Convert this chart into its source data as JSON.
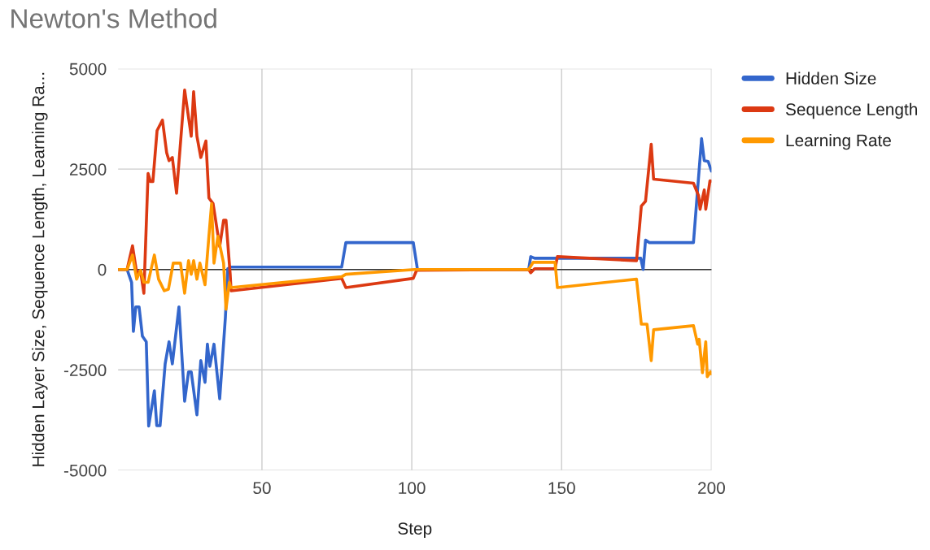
{
  "chart_data": {
    "type": "line",
    "title": "Newton's Method",
    "xlabel": "Step",
    "ylabel": "Hidden Layer Size, Sequence Length, Learning Ra...",
    "xlim": [
      2,
      200
    ],
    "xticks": [
      50,
      100,
      150,
      200
    ],
    "ylim": [
      -5000,
      5000
    ],
    "yticks": [
      -5000,
      -2500,
      0,
      2500,
      5000
    ],
    "grid": true,
    "legend": "top right",
    "line_style": "solid",
    "ref_lines": [
      {
        "axis": "y",
        "value": 0,
        "color": "#333333"
      }
    ],
    "series": [
      {
        "name": "Hidden Size",
        "color": "#3366cc",
        "x": [
          2,
          5,
          6.5,
          7.1,
          7.9,
          9,
          10.1,
          11.4,
          12.2,
          14.1,
          14.9,
          16,
          17.7,
          19,
          20.1,
          22.3,
          24.2,
          25.5,
          26.4,
          28.3,
          29.6,
          31,
          31.8,
          32.6,
          34,
          35.9,
          37.8,
          38.6,
          39.5,
          76.6,
          78,
          100.5,
          101.9,
          139,
          139.7,
          141,
          176.4,
          177.2,
          178,
          179.3,
          194,
          196.7,
          197.6,
          198.9,
          200
        ],
        "values": [
          0,
          0,
          -320,
          -1540,
          -930,
          -930,
          -1660,
          -1800,
          -3900,
          -3020,
          -3890,
          -3890,
          -2350,
          -1800,
          -2350,
          -930,
          -3280,
          -2550,
          -2550,
          -3620,
          -2270,
          -2810,
          -1860,
          -2410,
          -1860,
          -3220,
          -1190,
          20,
          60,
          60,
          670,
          670,
          0,
          0,
          320,
          280,
          280,
          0,
          730,
          670,
          670,
          3260,
          2710,
          2690,
          2450
        ]
      },
      {
        "name": "Sequence Length",
        "color": "#dc3912",
        "x": [
          2,
          5,
          6.8,
          8.2,
          9.5,
          10.6,
          12,
          12.8,
          13.6,
          15,
          16.8,
          18.2,
          19,
          20.1,
          21.5,
          24.2,
          26.4,
          27.2,
          28.3,
          29.6,
          31.3,
          32.3,
          33.7,
          35.9,
          37.2,
          38,
          39.4,
          39.7,
          76.6,
          78,
          100.5,
          101.6,
          139,
          139.7,
          141,
          147.8,
          148.6,
          175,
          176.6,
          178,
          179.9,
          180.7,
          194,
          195.7,
          196.2,
          197.6,
          198.1,
          199.5,
          200
        ],
        "values": [
          0,
          0,
          590,
          -80,
          -40,
          -590,
          2390,
          2190,
          2190,
          3460,
          3720,
          2910,
          2710,
          2790,
          1900,
          4470,
          3320,
          4430,
          3320,
          2790,
          3200,
          1780,
          1640,
          570,
          1230,
          1230,
          -120,
          -530,
          -220,
          -450,
          -220,
          -20,
          0,
          -80,
          20,
          20,
          320,
          220,
          1580,
          1700,
          3120,
          2250,
          2150,
          1840,
          1500,
          1980,
          1500,
          2210,
          2200
        ]
      },
      {
        "name": "Learning Rate",
        "color": "#ff9900",
        "x": [
          2,
          5,
          6.8,
          8.2,
          9.5,
          10.6,
          12,
          14.1,
          15.5,
          17.4,
          18.8,
          20.4,
          22.8,
          24.2,
          25.5,
          26.4,
          27.2,
          28.3,
          29.3,
          31,
          32.3,
          33.2,
          34,
          35.3,
          37.2,
          38,
          39.1,
          39.6,
          76.6,
          78,
          101,
          139,
          140.5,
          147.8,
          148.6,
          175,
          176.6,
          178.5,
          179.9,
          180.7,
          194,
          195.4,
          195.9,
          197,
          198.1,
          198.6,
          199.7,
          200
        ],
        "values": [
          0,
          0,
          360,
          -240,
          -20,
          -320,
          -320,
          360,
          -240,
          -530,
          -490,
          160,
          160,
          -590,
          220,
          -120,
          220,
          -240,
          160,
          -380,
          830,
          1640,
          160,
          830,
          160,
          -990,
          -320,
          -450,
          -180,
          -120,
          0,
          0,
          180,
          180,
          -450,
          -240,
          -1360,
          -1360,
          -2270,
          -1500,
          -1400,
          -1860,
          -1740,
          -2570,
          -1800,
          -2670,
          -2550,
          -2600
        ]
      }
    ]
  }
}
